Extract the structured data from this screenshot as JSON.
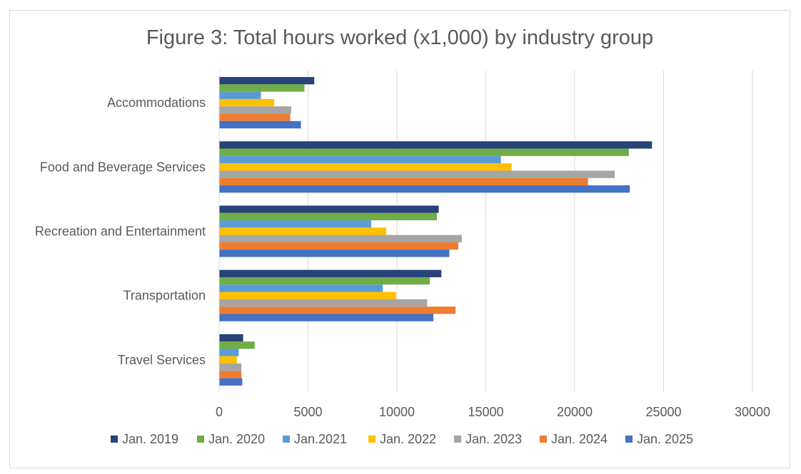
{
  "chart_data": {
    "type": "bar",
    "orientation": "horizontal",
    "title": "Figure 3: Total hours worked (x1,000) by industry group",
    "categories": [
      "Accommodations",
      "Food and Beverage Services",
      "Recreation and Entertainment",
      "Transportation",
      "Travel Services"
    ],
    "series": [
      {
        "name": "Jan. 2019",
        "color": "#264478",
        "values": [
          5350,
          24350,
          12350,
          12500,
          1350
        ]
      },
      {
        "name": "Jan. 2020",
        "color": "#70AD47",
        "values": [
          4800,
          23050,
          12250,
          11850,
          2000
        ]
      },
      {
        "name": "Jan.2021",
        "color": "#5B9BD5",
        "values": [
          2350,
          15850,
          8550,
          9200,
          1100
        ]
      },
      {
        "name": "Jan. 2022",
        "color": "#FFC000",
        "values": [
          3100,
          16450,
          9400,
          9950,
          1000
        ]
      },
      {
        "name": "Jan. 2023",
        "color": "#A5A5A5",
        "values": [
          4050,
          22250,
          13650,
          11700,
          1250
        ]
      },
      {
        "name": "Jan. 2024",
        "color": "#ED7D31",
        "values": [
          4000,
          20750,
          13450,
          13300,
          1250
        ]
      },
      {
        "name": "Jan. 2025",
        "color": "#4472C4",
        "values": [
          4600,
          23100,
          12950,
          12050,
          1300
        ]
      }
    ],
    "xlim": [
      0,
      30000
    ],
    "xticks": [
      0,
      5000,
      10000,
      15000,
      20000,
      25000,
      30000
    ],
    "xtick_labels": [
      "0",
      "5000",
      "10000",
      "15000",
      "20000",
      "25000",
      "30000"
    ],
    "xlabel": "",
    "ylabel": "",
    "grid": "vertical",
    "legend_position": "bottom"
  }
}
